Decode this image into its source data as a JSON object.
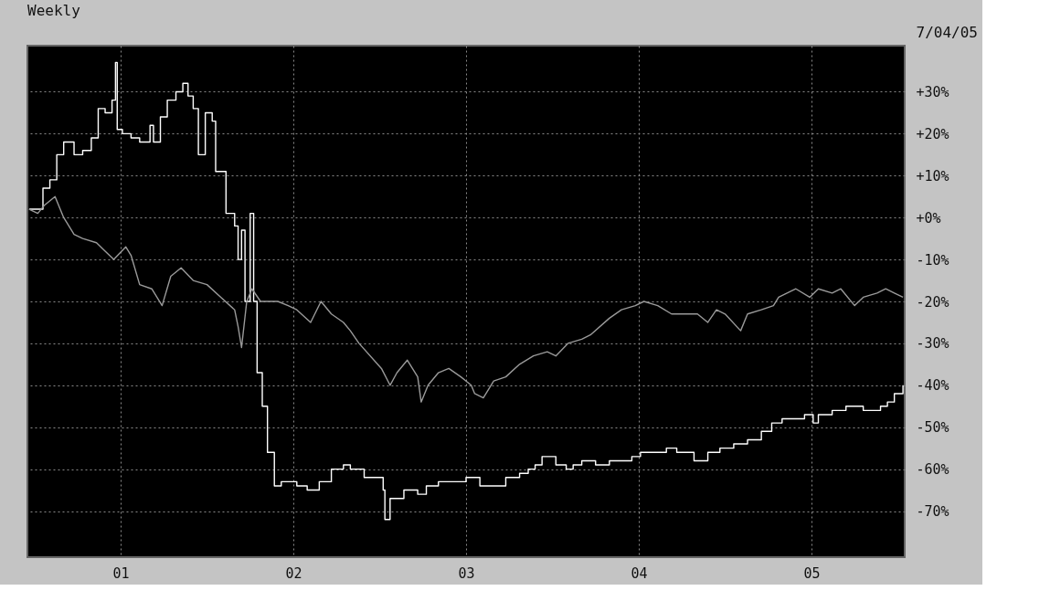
{
  "chart_data": {
    "type": "line",
    "title": "Weekly",
    "annotations": [
      "7/04/05"
    ],
    "series": [
      {
        "type": "step",
        "color": "#ffffff",
        "x": [
          2000.47,
          2000.55,
          2000.59,
          2000.63,
          2000.67,
          2000.73,
          2000.78,
          2000.83,
          2000.87,
          2000.91,
          2000.95,
          2000.97,
          2000.98,
          2001.01,
          2001.06,
          2001.11,
          2001.17,
          2001.19,
          2001.23,
          2001.27,
          2001.32,
          2001.36,
          2001.39,
          2001.42,
          2001.45,
          2001.49,
          2001.53,
          2001.55,
          2001.59,
          2001.61,
          2001.64,
          2001.66,
          2001.68,
          2001.7,
          2001.72,
          2001.75,
          2001.77,
          2001.79,
          2001.82,
          2001.85,
          2001.89,
          2001.93,
          2001.97,
          2002.02,
          2002.08,
          2002.15,
          2002.22,
          2002.29,
          2002.33,
          2002.41,
          2002.52,
          2002.53,
          2002.56,
          2002.64,
          2002.72,
          2002.77,
          2002.84,
          2002.92,
          2003.0,
          2003.08,
          2003.16,
          2003.23,
          2003.31,
          2003.36,
          2003.4,
          2003.44,
          2003.52,
          2003.58,
          2003.62,
          2003.67,
          2003.75,
          2003.83,
          2003.9,
          2003.96,
          2004.01,
          2004.09,
          2004.16,
          2004.22,
          2004.32,
          2004.4,
          2004.47,
          2004.55,
          2004.63,
          2004.71,
          2004.77,
          2004.83,
          2004.9,
          2004.96,
          2005.01,
          2005.04,
          2005.12,
          2005.2,
          2005.25,
          2005.3,
          2005.35,
          2005.4,
          2005.44,
          2005.48,
          2005.53
        ],
        "values": [
          2,
          7,
          9,
          15,
          18,
          15,
          16,
          19,
          26,
          25,
          28,
          37,
          21,
          20,
          19,
          18,
          22,
          18,
          24,
          28,
          30,
          32,
          29,
          26,
          15,
          25,
          23,
          11,
          11,
          1,
          1,
          -2,
          -10,
          -3,
          -20,
          1,
          -20,
          -37,
          -45,
          -56,
          -64,
          -63,
          -63,
          -64,
          -65,
          -63,
          -60,
          -59,
          -60,
          -62,
          -65,
          -72,
          -67,
          -65,
          -66,
          -64,
          -63,
          -63,
          -62,
          -64,
          -64,
          -62,
          -61,
          -60,
          -59,
          -57,
          -59,
          -60,
          -59,
          -58,
          -59,
          -58,
          -58,
          -57,
          -56,
          -56,
          -55,
          -56,
          -58,
          -56,
          -55,
          -54,
          -53,
          -51,
          -49,
          -48,
          -48,
          -47,
          -49,
          -47,
          -46,
          -45,
          -45,
          -46,
          -46,
          -45,
          -44,
          -42,
          -40
        ]
      },
      {
        "color": "#9a9a9a",
        "x": [
          2000.47,
          2000.52,
          2000.56,
          2000.62,
          2000.67,
          2000.73,
          2000.78,
          2000.86,
          2000.91,
          2000.96,
          2001.03,
          2001.06,
          2001.11,
          2001.18,
          2001.24,
          2001.29,
          2001.35,
          2001.42,
          2001.5,
          2001.58,
          2001.66,
          2001.68,
          2001.7,
          2001.73,
          2001.76,
          2001.81,
          2001.86,
          2001.91,
          2001.97,
          2002.02,
          2002.1,
          2002.16,
          2002.22,
          2002.29,
          2002.33,
          2002.38,
          2002.51,
          2002.56,
          2002.6,
          2002.66,
          2002.72,
          2002.74,
          2002.78,
          2002.84,
          2002.9,
          2002.97,
          2003.03,
          2003.05,
          2003.1,
          2003.16,
          2003.23,
          2003.31,
          2003.39,
          2003.47,
          2003.52,
          2003.59,
          2003.67,
          2003.72,
          2003.83,
          2003.9,
          2003.98,
          2004.03,
          2004.11,
          2004.19,
          2004.27,
          2004.34,
          2004.4,
          2004.45,
          2004.5,
          2004.59,
          2004.63,
          2004.71,
          2004.78,
          2004.81,
          2004.91,
          2004.99,
          2005.04,
          2005.12,
          2005.17,
          2005.25,
          2005.3,
          2005.38,
          2005.43,
          2005.48,
          2005.53
        ],
        "values": [
          2,
          1,
          3,
          5,
          0,
          -4,
          -5,
          -6,
          -8,
          -10,
          -7,
          -9,
          -16,
          -17,
          -21,
          -14,
          -12,
          -15,
          -16,
          -19,
          -22,
          -26,
          -31,
          -20,
          -17,
          -20,
          -20,
          -20,
          -21,
          -22,
          -25,
          -20,
          -23,
          -25,
          -27,
          -30,
          -36,
          -40,
          -37,
          -34,
          -38,
          -44,
          -40,
          -37,
          -36,
          -38,
          -40,
          -42,
          -43,
          -39,
          -38,
          -35,
          -33,
          -32,
          -33,
          -30,
          -29,
          -28,
          -24,
          -22,
          -21,
          -20,
          -21,
          -23,
          -23,
          -23,
          -25,
          -22,
          -23,
          -27,
          -23,
          -22,
          -21,
          -19,
          -17,
          -19,
          -17,
          -18,
          -17,
          -21,
          -19,
          -18,
          -17,
          -18,
          -19
        ]
      }
    ],
    "xlim": [
      2000.46,
      2005.54
    ],
    "xticks": [
      {
        "value": 2001,
        "label": "01"
      },
      {
        "value": 2002,
        "label": "02"
      },
      {
        "value": 2003,
        "label": "03"
      },
      {
        "value": 2004,
        "label": "04"
      },
      {
        "value": 2005,
        "label": "05"
      }
    ],
    "ylim": [
      -81,
      41
    ],
    "yticks": [
      {
        "value": 30,
        "label": "+30%"
      },
      {
        "value": 20,
        "label": "+20%"
      },
      {
        "value": 10,
        "label": "+10%"
      },
      {
        "value": 0,
        "label": "+0%"
      },
      {
        "value": -10,
        "label": "-10%"
      },
      {
        "value": -20,
        "label": "-20%"
      },
      {
        "value": -30,
        "label": "-30%"
      },
      {
        "value": -40,
        "label": "-40%"
      },
      {
        "value": -50,
        "label": "-50%"
      },
      {
        "value": -60,
        "label": "-60%"
      },
      {
        "value": -70,
        "label": "-70%"
      }
    ],
    "grid": true
  }
}
